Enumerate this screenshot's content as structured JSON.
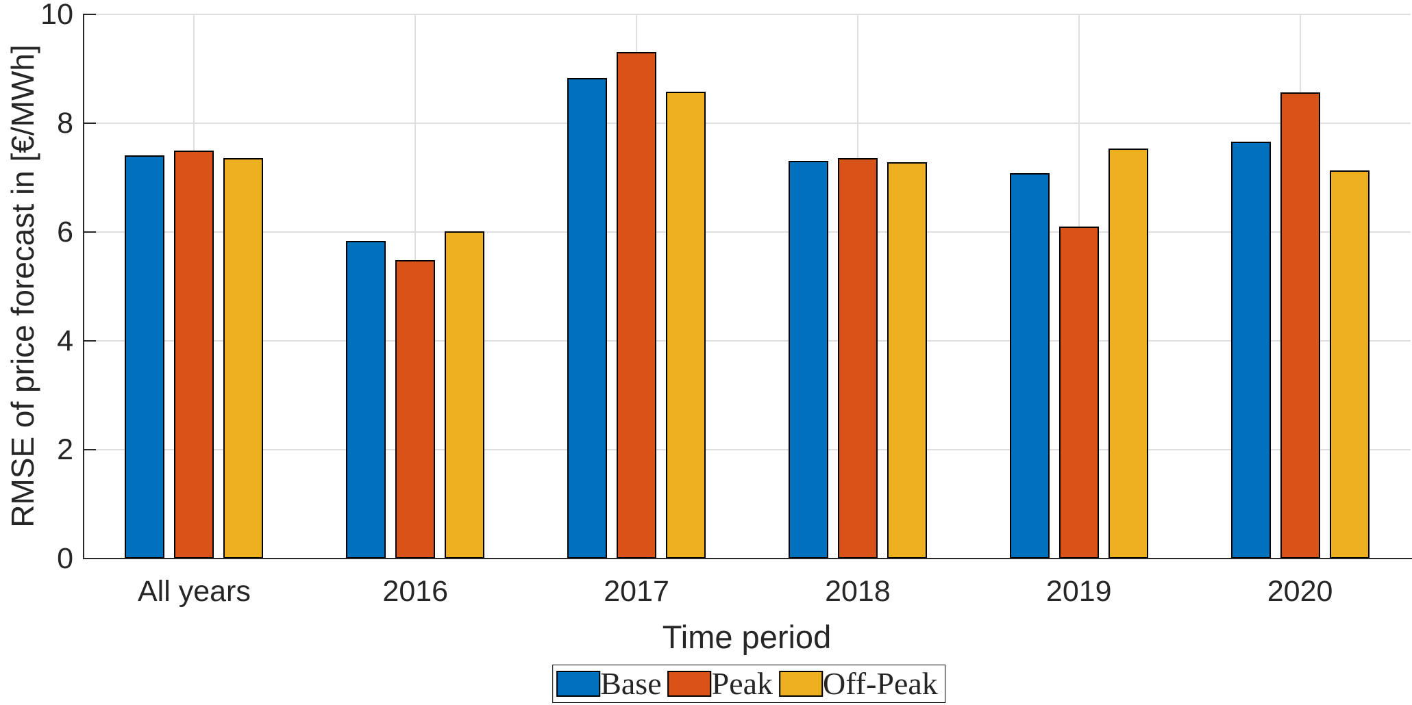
{
  "figure": {
    "background": "#ffffff",
    "text_color": "#262626",
    "axis_color": "#262626",
    "grid_color": "#dfdfdf",
    "bar_edge_color": "#000000",
    "legend_border_color": "#000000"
  },
  "chart_data": {
    "type": "bar",
    "title": "",
    "xlabel": "Time period",
    "ylabel": "RMSE of price forecast in [€/MWh]",
    "categories": [
      "All years",
      "2016",
      "2017",
      "2018",
      "2019",
      "2020"
    ],
    "series": [
      {
        "name": "Base",
        "color": "#0072BD",
        "values": [
          7.41,
          5.84,
          8.83,
          7.31,
          7.08,
          7.66
        ]
      },
      {
        "name": "Peak",
        "color": "#D95319",
        "values": [
          7.5,
          5.48,
          9.31,
          7.36,
          6.1,
          8.57
        ]
      },
      {
        "name": "Off-Peak",
        "color": "#EDB120",
        "values": [
          7.36,
          6.01,
          8.58,
          7.28,
          7.53,
          7.13
        ]
      }
    ],
    "ylim": [
      0,
      10
    ],
    "yticks": [
      0,
      2,
      4,
      6,
      8,
      10
    ],
    "grid": true,
    "legend_position": "south-outside"
  }
}
